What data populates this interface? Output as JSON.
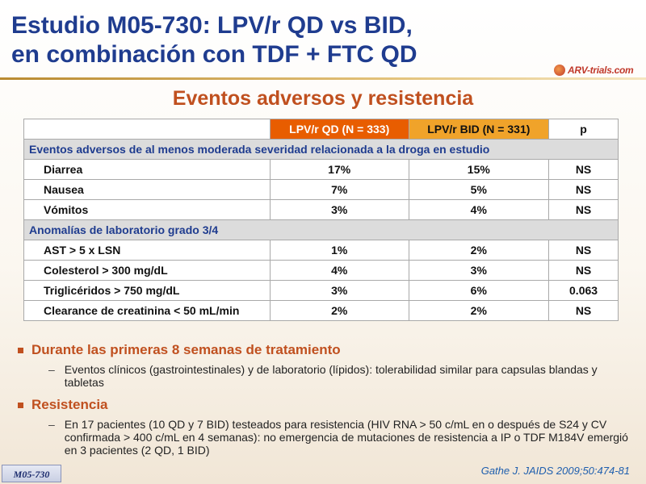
{
  "header": {
    "title_line1": "Estudio M05-730: LPV/r QD vs BID,",
    "title_line2": "en combinación con TDF + FTC QD",
    "logo_text": "ARV-trials.com"
  },
  "subtitle": "Eventos adversos y resistencia",
  "table": {
    "columns": [
      "",
      "LPV/r QD (N = 333)",
      "LPV/r BID (N = 331)",
      "p"
    ],
    "sections": [
      {
        "title": "Eventos adversos de al menos moderada severidad relacionada  a la droga en estudio",
        "rows": [
          {
            "label": "Diarrea",
            "qd": "17%",
            "bid": "15%",
            "p": "NS"
          },
          {
            "label": "Nausea",
            "qd": "7%",
            "bid": "5%",
            "p": "NS"
          },
          {
            "label": "Vómitos",
            "qd": "3%",
            "bid": "4%",
            "p": "NS"
          }
        ]
      },
      {
        "title": "Anomalías de laboratorio grado 3/4",
        "rows": [
          {
            "label": "AST > 5 x LSN",
            "qd": "1%",
            "bid": "2%",
            "p": "NS"
          },
          {
            "label": "Colesterol > 300 mg/dL",
            "qd": "4%",
            "bid": "3%",
            "p": "NS"
          },
          {
            "label": "Triglicéridos > 750 mg/dL",
            "qd": "3%",
            "bid": "6%",
            "p": "0.063"
          },
          {
            "label": "Clearance de creatinina < 50 mL/min",
            "qd": "2%",
            "bid": "2%",
            "p": "NS"
          }
        ]
      }
    ]
  },
  "bullets": [
    {
      "title": "Durante las primeras 8 semanas de tratamiento",
      "sub": "Eventos clínicos (gastrointestinales) y de laboratorio (lípidos): tolerabilidad similar para capsulas blandas y tabletas"
    },
    {
      "title": "Resistencia",
      "sub": "En 17 pacientes (10 QD y 7 BID) testeados para resistencia (HIV RNA > 50 c/mL en o  después de S24 y CV  confirmada > 400 c/mL en 4 semanas): no emergencia de mutaciones de resistencia a IP o TDF  M184V emergió en 3 pacientes (2 QD, 1 BID)"
    }
  ],
  "footer": {
    "reference": "Gathe J. JAIDS 2009;50:474-81",
    "badge": "M05-730"
  }
}
